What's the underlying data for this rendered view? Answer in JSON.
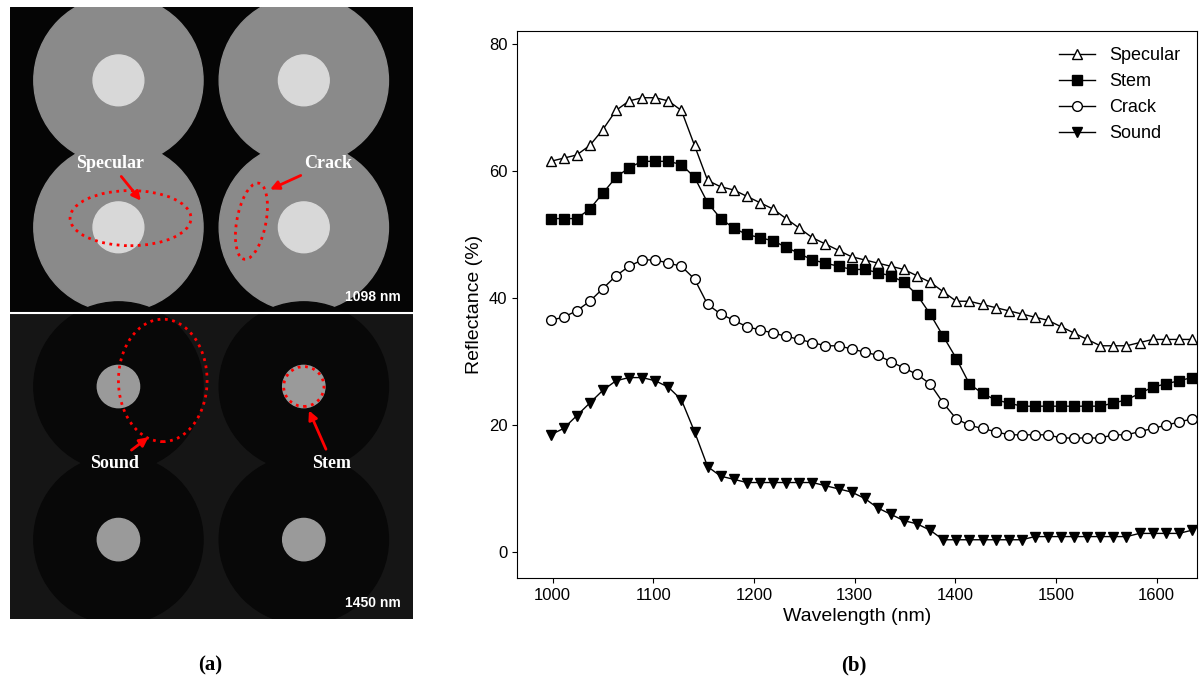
{
  "panel_labels": [
    "(a)",
    "(b)"
  ],
  "image_panel": {
    "type": "image",
    "region_labels": [
      "Specular",
      "Crack",
      "Sound",
      "Stem"
    ],
    "band_labels": [
      "1098 nm",
      "1450 nm"
    ]
  },
  "chart_data": {
    "type": "line",
    "x_label": "Wavelength (nm)",
    "y_label": "Reflectance (%)",
    "x": [
      998,
      1011,
      1024,
      1037,
      1050,
      1063,
      1076,
      1089,
      1102,
      1115,
      1128,
      1141,
      1154,
      1167,
      1180,
      1193,
      1206,
      1219,
      1232,
      1245,
      1258,
      1271,
      1284,
      1297,
      1310,
      1323,
      1336,
      1349,
      1362,
      1375,
      1388,
      1401,
      1414,
      1427,
      1440,
      1453,
      1466,
      1479,
      1492,
      1505,
      1518,
      1531,
      1544,
      1557,
      1570,
      1583,
      1596,
      1609,
      1622,
      1635
    ],
    "xlim": [
      965,
      1640
    ],
    "xticks": [
      1000,
      1100,
      1200,
      1300,
      1400,
      1500,
      1600
    ],
    "ylim": [
      -4,
      82
    ],
    "yticks": [
      0,
      20,
      40,
      60,
      80
    ],
    "legend": "upper right",
    "grid": false,
    "series": [
      {
        "name": "Specular",
        "color": "#000000",
        "marker": "open_triangle_up",
        "line_style": "solid",
        "values": [
          61.5,
          62,
          62.5,
          64,
          66.5,
          69.5,
          71,
          71.5,
          71.5,
          71,
          69.5,
          64,
          58.5,
          57.5,
          57,
          56,
          55,
          54,
          52.5,
          51,
          49.5,
          48.5,
          47.5,
          46.5,
          46,
          45.5,
          45,
          44.5,
          43.5,
          42.5,
          41,
          39.5,
          39.5,
          39,
          38.5,
          38,
          37.5,
          37,
          36.5,
          35.5,
          34.5,
          33.5,
          32.5,
          32.5,
          32.5,
          33,
          33.5,
          33.5,
          33.5,
          33.5
        ]
      },
      {
        "name": "Stem",
        "color": "#000000",
        "marker": "filled_square",
        "line_style": "solid",
        "values": [
          52.5,
          52.5,
          52.5,
          54,
          56.5,
          59,
          60.5,
          61.5,
          61.5,
          61.5,
          61,
          59,
          55,
          52.5,
          51,
          50,
          49.5,
          49,
          48,
          47,
          46,
          45.5,
          45,
          44.5,
          44.5,
          44,
          43.5,
          42.5,
          40.5,
          37.5,
          34,
          30.5,
          26.5,
          25,
          24,
          23.5,
          23,
          23,
          23,
          23,
          23,
          23,
          23,
          23.5,
          24,
          25,
          26,
          26.5,
          27,
          27.5
        ]
      },
      {
        "name": "Crack",
        "color": "#000000",
        "marker": "open_circle",
        "line_style": "solid",
        "values": [
          36.5,
          37,
          38,
          39.5,
          41.5,
          43.5,
          45,
          46,
          46,
          45.5,
          45,
          43,
          39,
          37.5,
          36.5,
          35.5,
          35,
          34.5,
          34,
          33.5,
          33,
          32.5,
          32.5,
          32,
          31.5,
          31,
          30,
          29,
          28,
          26.5,
          23.5,
          21,
          20,
          19.5,
          19,
          18.5,
          18.5,
          18.5,
          18.5,
          18,
          18,
          18,
          18,
          18.5,
          18.5,
          19,
          19.5,
          20,
          20.5,
          21
        ]
      },
      {
        "name": "Sound",
        "color": "#000000",
        "marker": "filled_triangle_down",
        "line_style": "solid",
        "values": [
          18.5,
          19.5,
          21.5,
          23.5,
          25.5,
          27,
          27.5,
          27.5,
          27,
          26,
          24,
          19,
          13.5,
          12,
          11.5,
          11,
          11,
          11,
          11,
          11,
          11,
          10.5,
          10,
          9.5,
          8.5,
          7,
          6,
          5,
          4.5,
          3.5,
          2,
          2,
          2,
          2,
          2,
          2,
          2,
          2.5,
          2.5,
          2.5,
          2.5,
          2.5,
          2.5,
          2.5,
          2.5,
          3,
          3,
          3,
          3,
          3.5
        ]
      }
    ]
  }
}
